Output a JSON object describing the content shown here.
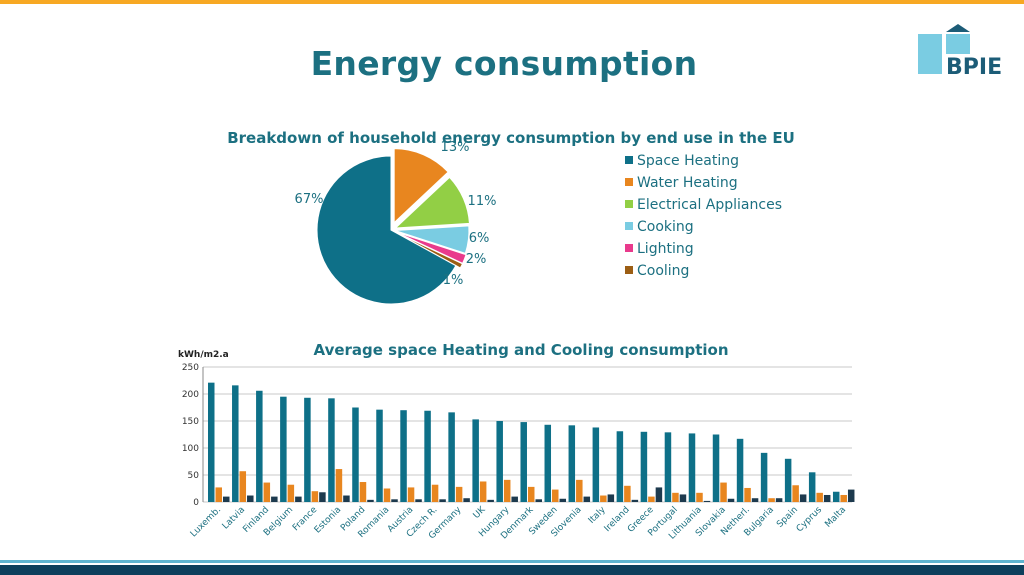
{
  "slide": {
    "title": "Energy consumption",
    "logo_text": "BPIE"
  },
  "colors": {
    "accent_orange": "#F7A823",
    "title": "#1C7081",
    "chart_text": "#1C7081",
    "dark_band": "#0D3F5C",
    "light_stripe": "#5FB4D0"
  },
  "chart_data": [
    {
      "type": "pie",
      "title": "Breakdown of household energy consumption by end use in the EU",
      "slices": [
        {
          "label": "Space Heating",
          "value": 67,
          "value_label": "67%",
          "color": "#0E7088"
        },
        {
          "label": "Water Heating",
          "value": 13,
          "value_label": "13%",
          "color": "#E8861F"
        },
        {
          "label": "Electrical Appliances",
          "value": 11,
          "value_label": "11%",
          "color": "#92CF45"
        },
        {
          "label": "Cooking",
          "value": 6,
          "value_label": "6%",
          "color": "#7ACCE2"
        },
        {
          "label": "Lighting",
          "value": 2,
          "value_label": "2%",
          "color": "#E93A8C"
        },
        {
          "label": "Cooling",
          "value": 1,
          "value_label": "1%",
          "color": "#9C5E14"
        }
      ],
      "legend_position": "right"
    },
    {
      "type": "bar",
      "title": "Average space Heating and Cooling consumption",
      "ylabel": "kWh/m2.a",
      "ylim": [
        0,
        250
      ],
      "yticks": [
        0,
        50,
        100,
        150,
        200,
        250
      ],
      "grid": true,
      "categories": [
        "Luxemb.",
        "Latvia",
        "Finland",
        "Belgium",
        "France",
        "Estonia",
        "Poland",
        "Romania",
        "Austria",
        "Czech R.",
        "Germany",
        "UK",
        "Hungary",
        "Denmark",
        "Sweden",
        "Slovenia",
        "Italy",
        "Ireland",
        "Greece",
        "Portugal",
        "Lithuania",
        "Slovakia",
        "Netherl.",
        "Bulgaria",
        "Spain",
        "Cyprus",
        "Malta"
      ],
      "series": [
        {
          "color": "#0E7088",
          "values": [
            221,
            216,
            206,
            195,
            193,
            192,
            175,
            171,
            170,
            169,
            166,
            153,
            150,
            148,
            143,
            142,
            138,
            131,
            130,
            129,
            127,
            125,
            117,
            91,
            80,
            55,
            19
          ]
        },
        {
          "color": "#E8861F",
          "values": [
            27,
            57,
            36,
            32,
            20,
            61,
            37,
            25,
            27,
            32,
            28,
            38,
            41,
            28,
            23,
            41,
            12,
            30,
            10,
            17,
            17,
            36,
            26,
            7,
            31,
            17,
            13
          ]
        },
        {
          "color": "#1D3A4E",
          "values": [
            10,
            12,
            10,
            10,
            18,
            12,
            4,
            5,
            5,
            5,
            7,
            4,
            10,
            5,
            6,
            10,
            14,
            4,
            27,
            14,
            2,
            6,
            7,
            7,
            14,
            13,
            23
          ]
        }
      ]
    }
  ]
}
